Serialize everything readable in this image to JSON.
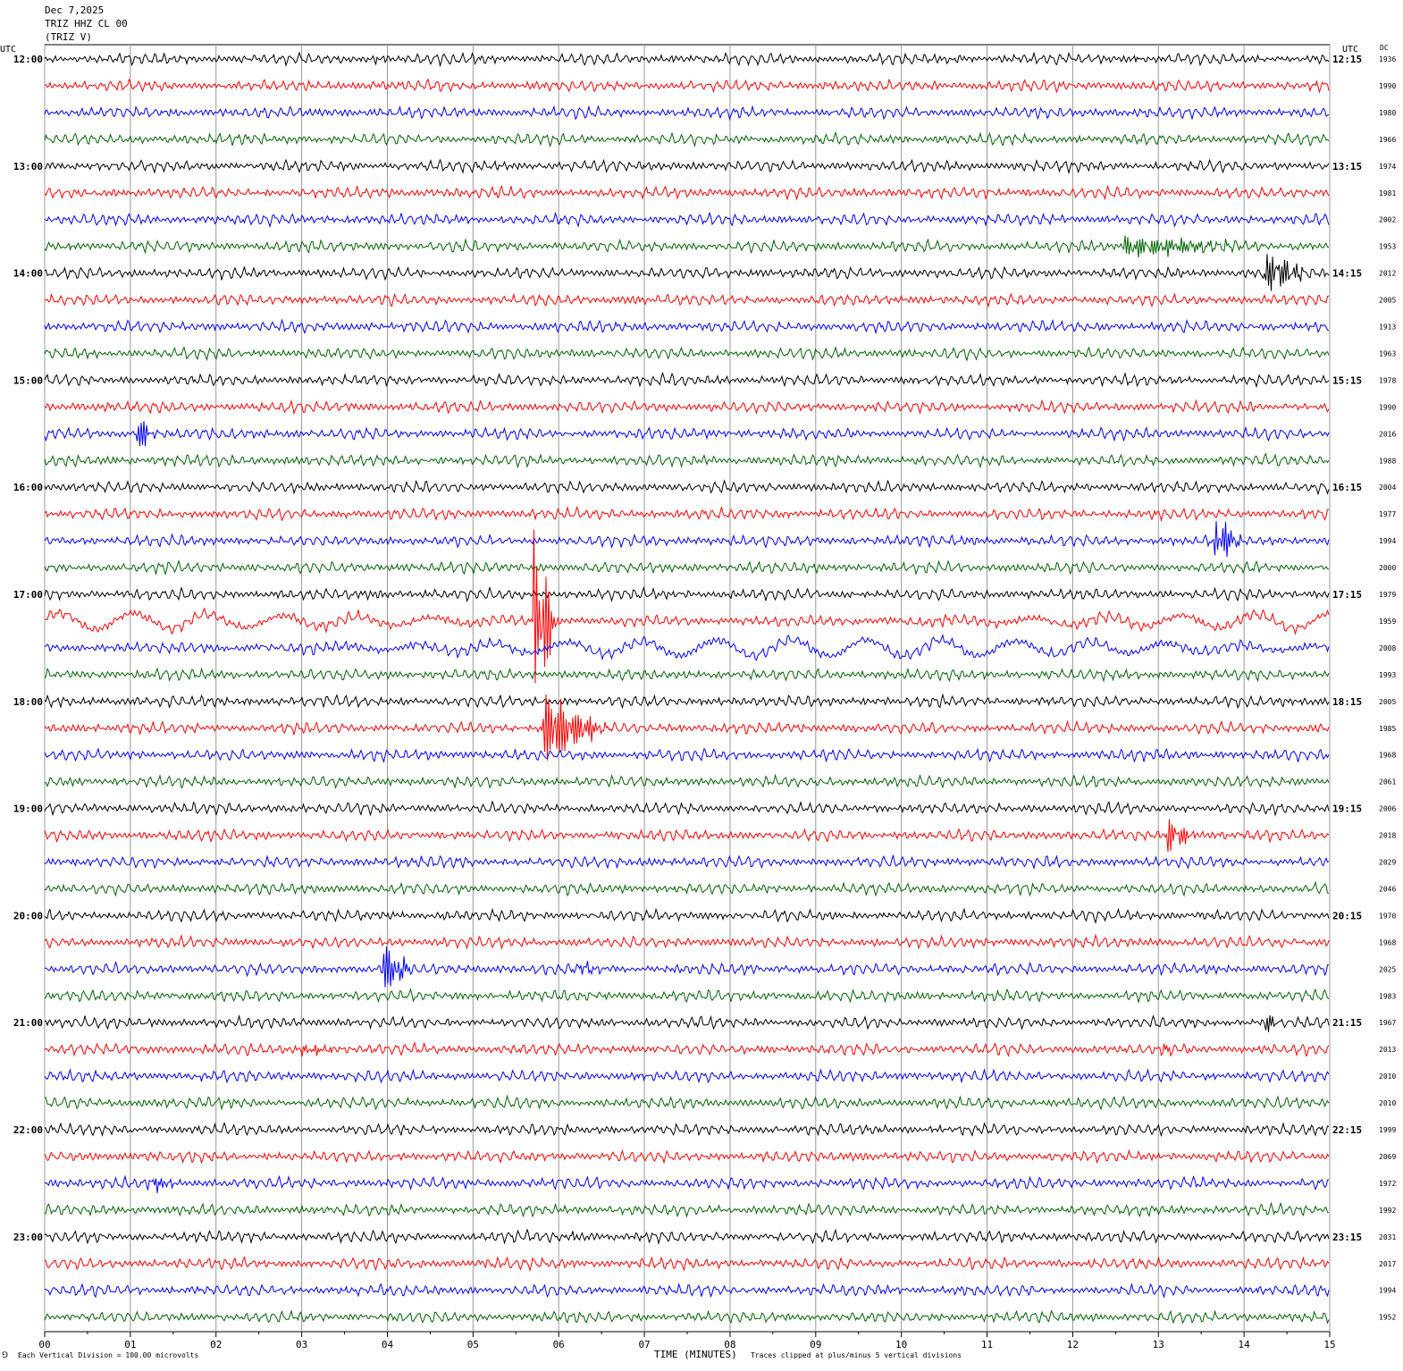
{
  "header": {
    "date": "Dec 7,2025",
    "station": "TRIZ HHZ CL 00",
    "code": "(TRIZ V)"
  },
  "corners": {
    "left_utc": "UTC",
    "right_utc": "UTC",
    "dc": "DC"
  },
  "footer": {
    "scale_note": "Each Vertical Division =  100.00 microvolts",
    "clip_note": "Traces clipped at plus/minus 5 vertical divisions",
    "logo_glyph": "⅁"
  },
  "colors": {
    "trace": [
      "#000000",
      "#ff0000",
      "#0000ff",
      "#006400"
    ],
    "grid": "#999999"
  },
  "chart_data": {
    "type": "line",
    "subtype": "helicorder",
    "xlabel": "TIME (MINUTES)",
    "xlim": [
      0,
      15
    ],
    "x_ticks": [
      "00",
      "01",
      "02",
      "03",
      "04",
      "05",
      "06",
      "07",
      "08",
      "09",
      "10",
      "11",
      "12",
      "13",
      "14",
      "15"
    ],
    "left_hour_labels": [
      "12:00",
      "13:00",
      "14:00",
      "15:00",
      "16:00",
      "17:00",
      "18:00",
      "19:00",
      "20:00",
      "21:00",
      "22:00",
      "23:00"
    ],
    "right_hour_labels": [
      "12:15",
      "13:15",
      "14:15",
      "15:15",
      "16:15",
      "17:15",
      "18:15",
      "19:15",
      "20:15",
      "21:15",
      "22:15",
      "23:15"
    ],
    "dc_offsets": [
      1936,
      1990,
      1980,
      1966,
      1974,
      1981,
      2002,
      1953,
      2012,
      2005,
      1913,
      1963,
      1978,
      1990,
      2016,
      1988,
      2004,
      1977,
      1994,
      2000,
      1979,
      1959,
      2008,
      1993,
      2005,
      1985,
      1968,
      2061,
      2006,
      2018,
      2029,
      2046,
      1970,
      1968,
      2025,
      1983,
      1967,
      2013,
      2010,
      2010,
      1999,
      2069,
      1972,
      1992,
      2031,
      2017,
      1994,
      1952
    ],
    "events": [
      {
        "line": 0,
        "minute": 3.85,
        "amp": 5,
        "dur": 0.12
      },
      {
        "line": 0,
        "minute": 12.7,
        "amp": 8,
        "dur": 0.08
      },
      {
        "line": 7,
        "minute": 12.6,
        "amp": 14,
        "dur": 1.6
      },
      {
        "line": 8,
        "minute": 14.2,
        "amp": 26,
        "dur": 0.6
      },
      {
        "line": 14,
        "minute": 1.05,
        "amp": 30,
        "dur": 0.25
      },
      {
        "line": 18,
        "minute": 13.65,
        "amp": 35,
        "dur": 0.35
      },
      {
        "line": 21,
        "minute": 5.7,
        "amp": 120,
        "dur": 0.3
      },
      {
        "line": 25,
        "minute": 5.8,
        "amp": 45,
        "dur": 0.8
      },
      {
        "line": 29,
        "minute": 13.1,
        "amp": 25,
        "dur": 0.35
      },
      {
        "line": 34,
        "minute": 3.95,
        "amp": 35,
        "dur": 0.35
      },
      {
        "line": 34,
        "minute": 6.25,
        "amp": 14,
        "dur": 0.2
      },
      {
        "line": 36,
        "minute": 14.25,
        "amp": 14,
        "dur": 0.2
      },
      {
        "line": 37,
        "minute": 3.0,
        "amp": 7,
        "dur": 0.55
      },
      {
        "line": 37,
        "minute": 13.05,
        "amp": 9,
        "dur": 0.15
      },
      {
        "line": 42,
        "minute": 1.2,
        "amp": 10,
        "dur": 0.45
      },
      {
        "line": 44,
        "minute": 6.1,
        "amp": 12,
        "dur": 0.1
      }
    ],
    "long_period_lines": [
      21,
      22
    ]
  }
}
